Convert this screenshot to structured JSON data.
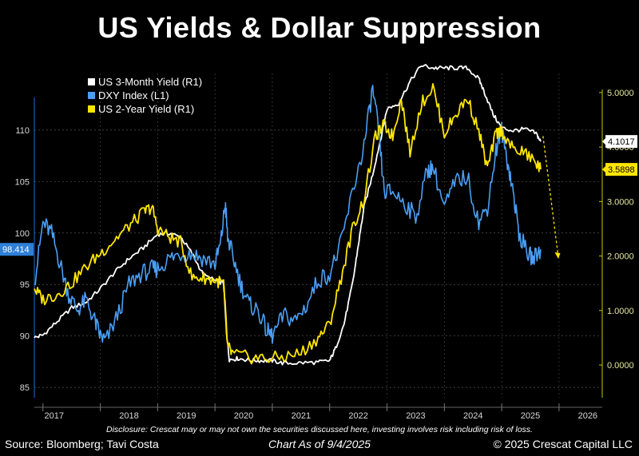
{
  "title": "US Yields & Dollar Suppression",
  "disclosure": "Disclosure: Crescat may or may not own the securities discussed here, investing involves risk including risk of loss.",
  "footer": {
    "source": "Source: Bloomberg; Tavi Costa",
    "as_of": "Chart As of 9/4/2025",
    "copyright": "© 2025 Crescat Capital LLC"
  },
  "chart_data": {
    "type": "line",
    "x_ticks": [
      "2017",
      "2018",
      "2019",
      "2020",
      "2021",
      "2022",
      "2023",
      "2024",
      "2025",
      "2026"
    ],
    "xlim": [
      2016.85,
      2026.6
    ],
    "y_left": {
      "ticks": [
        "85",
        "90",
        "95",
        "100",
        "105",
        "110"
      ],
      "range": [
        84,
        115.5
      ]
    },
    "y_right": {
      "ticks": [
        "0.0000",
        "1.0000",
        "2.0000",
        "3.0000",
        "4.0000",
        "5.0000"
      ],
      "range": [
        -0.6,
        5.35
      ]
    },
    "grid": true,
    "legend_position": "top-left",
    "last_value_labels": {
      "dxy": "98.414",
      "bill3m": "4.1017",
      "note2y": "3.5898"
    },
    "series": [
      {
        "name": "US 3-Month Yield (R1)",
        "axis": "right",
        "color": "#ffffff",
        "x": [
          2016.85,
          2017.0,
          2017.25,
          2017.5,
          2017.75,
          2018.0,
          2018.25,
          2018.5,
          2018.75,
          2019.0,
          2019.2,
          2019.4,
          2019.6,
          2019.8,
          2020.0,
          2020.15,
          2020.2,
          2020.25,
          2020.4,
          2020.6,
          2020.8,
          2021.0,
          2021.2,
          2021.5,
          2021.8,
          2022.0,
          2022.1,
          2022.25,
          2022.4,
          2022.5,
          2022.6,
          2022.75,
          2022.9,
          2023.0,
          2023.2,
          2023.4,
          2023.6,
          2023.8,
          2024.0,
          2024.2,
          2024.4,
          2024.6,
          2024.7,
          2024.85,
          2025.0,
          2025.2,
          2025.4,
          2025.6,
          2025.68
        ],
        "y": [
          0.5,
          0.55,
          0.8,
          1.05,
          1.15,
          1.4,
          1.7,
          1.95,
          2.15,
          2.4,
          2.42,
          2.35,
          2.05,
          1.65,
          1.55,
          1.5,
          0.6,
          0.1,
          0.12,
          0.09,
          0.08,
          0.08,
          0.03,
          0.04,
          0.05,
          0.08,
          0.3,
          0.75,
          1.5,
          2.2,
          2.9,
          3.5,
          4.2,
          4.7,
          4.8,
          5.2,
          5.5,
          5.45,
          5.45,
          5.45,
          5.45,
          5.25,
          5.0,
          4.6,
          4.35,
          4.3,
          4.33,
          4.25,
          4.1017
        ]
      },
      {
        "name": "DXY Index (L1)",
        "axis": "left",
        "color": "#4a9ff5",
        "x": [
          2016.85,
          2017.0,
          2017.15,
          2017.3,
          2017.45,
          2017.6,
          2017.75,
          2017.9,
          2018.0,
          2018.1,
          2018.3,
          2018.5,
          2018.7,
          2018.9,
          2019.0,
          2019.2,
          2019.4,
          2019.6,
          2019.8,
          2020.0,
          2020.1,
          2020.18,
          2020.22,
          2020.3,
          2020.45,
          2020.6,
          2020.75,
          2020.9,
          2021.0,
          2021.2,
          2021.4,
          2021.6,
          2021.8,
          2022.0,
          2022.2,
          2022.4,
          2022.6,
          2022.75,
          2022.85,
          2022.95,
          2023.1,
          2023.3,
          2023.5,
          2023.7,
          2023.8,
          2024.0,
          2024.2,
          2024.4,
          2024.6,
          2024.75,
          2024.9,
          2025.0,
          2025.1,
          2025.2,
          2025.3,
          2025.45,
          2025.55,
          2025.68
        ],
        "y": [
          95.0,
          101.0,
          100.0,
          97.0,
          94.0,
          92.5,
          93.5,
          91.5,
          90.0,
          89.5,
          92.0,
          95.0,
          96.0,
          96.5,
          96.5,
          97.5,
          98.0,
          98.0,
          97.5,
          97.0,
          99.0,
          103.0,
          99.5,
          98.0,
          95.0,
          93.0,
          92.5,
          90.5,
          90.0,
          92.0,
          91.5,
          93.0,
          95.5,
          96.0,
          99.0,
          104.0,
          108.5,
          114.0,
          110.0,
          104.0,
          104.0,
          103.0,
          101.5,
          106.0,
          106.5,
          102.5,
          105.0,
          105.5,
          101.0,
          102.5,
          108.0,
          110.0,
          107.0,
          104.0,
          100.0,
          98.0,
          97.5,
          98.414
        ]
      },
      {
        "name": "US 2-Year Yield (R1)",
        "axis": "right",
        "color": "#ffe600",
        "x": [
          2016.85,
          2017.0,
          2017.25,
          2017.5,
          2017.75,
          2018.0,
          2018.25,
          2018.5,
          2018.75,
          2018.9,
          2019.0,
          2019.2,
          2019.4,
          2019.6,
          2019.8,
          2020.0,
          2020.15,
          2020.22,
          2020.3,
          2020.6,
          2020.9,
          2021.2,
          2021.5,
          2021.8,
          2022.0,
          2022.2,
          2022.4,
          2022.6,
          2022.8,
          2022.95,
          2023.1,
          2023.25,
          2023.4,
          2023.6,
          2023.8,
          2024.0,
          2024.2,
          2024.4,
          2024.6,
          2024.75,
          2024.9,
          2025.0,
          2025.2,
          2025.4,
          2025.6,
          2025.68
        ],
        "y": [
          1.4,
          1.2,
          1.3,
          1.5,
          1.8,
          2.05,
          2.3,
          2.55,
          2.8,
          2.9,
          2.5,
          2.35,
          2.25,
          1.6,
          1.6,
          1.55,
          1.5,
          0.35,
          0.2,
          0.14,
          0.12,
          0.15,
          0.22,
          0.5,
          0.75,
          1.6,
          2.5,
          3.05,
          4.2,
          4.4,
          4.2,
          4.9,
          3.9,
          4.8,
          5.1,
          4.25,
          4.6,
          4.9,
          4.3,
          3.6,
          4.25,
          4.3,
          3.95,
          3.9,
          3.7,
          3.5898
        ]
      }
    ],
    "annotation": {
      "type": "arrow",
      "color": "#ffe600",
      "from": {
        "x": 2025.72,
        "y_right": 4.2
      },
      "to": {
        "x": 2025.98,
        "y_right": 1.95
      }
    }
  }
}
